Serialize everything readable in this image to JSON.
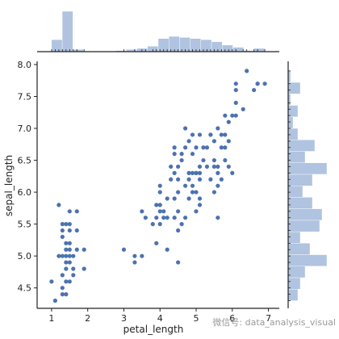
{
  "chart_data": {
    "type": "scatter",
    "xlabel": "petal_length",
    "ylabel": "sepal_length",
    "xlim": [
      0.6,
      7.3
    ],
    "ylim": [
      4.18,
      8.05
    ],
    "xticks": [
      1,
      2,
      3,
      4,
      5,
      6,
      7
    ],
    "yticks": [
      4.5,
      5.0,
      5.5,
      6.0,
      6.5,
      7.0,
      7.5,
      8.0
    ],
    "grid": false,
    "colors": {
      "points": "#4c72b0",
      "hist": "#b0c3e0",
      "axis": "#222222"
    },
    "points": [
      [
        1.1,
        4.3
      ],
      [
        1.0,
        4.6
      ],
      [
        1.4,
        4.4
      ],
      [
        1.3,
        4.4
      ],
      [
        1.3,
        4.5
      ],
      [
        1.4,
        4.6
      ],
      [
        1.5,
        4.6
      ],
      [
        1.6,
        4.7
      ],
      [
        1.3,
        4.7
      ],
      [
        1.4,
        4.8
      ],
      [
        1.6,
        4.8
      ],
      [
        1.9,
        4.8
      ],
      [
        1.4,
        4.9
      ],
      [
        1.5,
        4.9
      ],
      [
        1.2,
        5.0
      ],
      [
        1.3,
        5.0
      ],
      [
        1.4,
        5.0
      ],
      [
        1.5,
        5.0
      ],
      [
        1.6,
        5.0
      ],
      [
        1.5,
        5.1
      ],
      [
        1.4,
        5.1
      ],
      [
        1.7,
        5.1
      ],
      [
        1.9,
        5.1
      ],
      [
        1.5,
        5.2
      ],
      [
        1.4,
        5.2
      ],
      [
        1.3,
        5.3
      ],
      [
        1.3,
        5.4
      ],
      [
        1.5,
        5.4
      ],
      [
        1.7,
        5.4
      ],
      [
        1.3,
        5.5
      ],
      [
        1.4,
        5.5
      ],
      [
        1.5,
        5.5
      ],
      [
        1.5,
        5.7
      ],
      [
        1.7,
        5.7
      ],
      [
        1.2,
        5.8
      ],
      [
        3.0,
        5.1
      ],
      [
        3.3,
        5.0
      ],
      [
        3.3,
        4.9
      ],
      [
        3.5,
        5.0
      ],
      [
        4.5,
        4.9
      ],
      [
        3.5,
        5.7
      ],
      [
        3.6,
        5.6
      ],
      [
        3.8,
        5.5
      ],
      [
        3.9,
        5.2
      ],
      [
        3.9,
        5.6
      ],
      [
        3.9,
        5.8
      ],
      [
        4.0,
        5.5
      ],
      [
        4.0,
        5.7
      ],
      [
        4.0,
        5.8
      ],
      [
        4.0,
        6.0
      ],
      [
        4.0,
        6.1
      ],
      [
        4.1,
        5.6
      ],
      [
        4.1,
        5.7
      ],
      [
        4.2,
        5.6
      ],
      [
        4.2,
        5.9
      ],
      [
        4.3,
        6.2
      ],
      [
        4.4,
        6.3
      ],
      [
        4.4,
        6.6
      ],
      [
        4.4,
        6.7
      ],
      [
        4.5,
        6.0
      ],
      [
        4.5,
        6.2
      ],
      [
        4.5,
        6.4
      ],
      [
        4.5,
        5.4
      ],
      [
        4.6,
        6.5
      ],
      [
        4.6,
        6.6
      ],
      [
        4.7,
        6.1
      ],
      [
        4.7,
        7.0
      ],
      [
        4.7,
        6.7
      ],
      [
        4.8,
        6.8
      ],
      [
        4.8,
        6.3
      ],
      [
        4.9,
        6.0
      ],
      [
        4.9,
        6.3
      ],
      [
        4.9,
        6.9
      ],
      [
        4.2,
        5.1
      ],
      [
        4.4,
        5.6
      ],
      [
        4.5,
        5.7
      ],
      [
        4.7,
        5.6
      ],
      [
        4.6,
        5.5
      ],
      [
        4.8,
        5.9
      ],
      [
        4.3,
        6.4
      ],
      [
        4.4,
        5.9
      ],
      [
        4.9,
        6.1
      ],
      [
        4.9,
        6.6
      ],
      [
        5.0,
        5.7
      ],
      [
        5.0,
        6.0
      ],
      [
        5.0,
        6.7
      ],
      [
        5.1,
        6.9
      ],
      [
        5.1,
        5.8
      ],
      [
        5.1,
        6.3
      ],
      [
        5.1,
        6.4
      ],
      [
        5.2,
        6.5
      ],
      [
        5.3,
        6.4
      ],
      [
        5.4,
        6.9
      ],
      [
        5.4,
        6.2
      ],
      [
        5.5,
        6.8
      ],
      [
        5.5,
        6.5
      ],
      [
        5.6,
        6.3
      ],
      [
        5.6,
        6.1
      ],
      [
        5.6,
        6.4
      ],
      [
        5.7,
        6.7
      ],
      [
        5.8,
        6.7
      ],
      [
        5.8,
        6.5
      ],
      [
        5.9,
        6.8
      ],
      [
        5.9,
        7.1
      ],
      [
        6.0,
        6.3
      ],
      [
        6.0,
        7.2
      ],
      [
        6.1,
        7.2
      ],
      [
        6.1,
        7.7
      ],
      [
        6.3,
        7.3
      ],
      [
        6.4,
        7.9
      ],
      [
        6.6,
        7.6
      ],
      [
        6.7,
        7.7
      ],
      [
        6.9,
        7.7
      ],
      [
        5.6,
        5.6
      ],
      [
        5.7,
        6.9
      ],
      [
        5.2,
        6.7
      ],
      [
        5.0,
        6.3
      ],
      [
        5.8,
        6.9
      ],
      [
        5.5,
        6.4
      ],
      [
        5.1,
        6.2
      ],
      [
        5.1,
        5.9
      ],
      [
        5.0,
        6.3
      ],
      [
        4.8,
        6.2
      ],
      [
        5.3,
        6.7
      ],
      [
        5.4,
        6.9
      ],
      [
        5.5,
        6.0
      ],
      [
        5.7,
        6.2
      ],
      [
        6.1,
        7.4
      ],
      [
        5.8,
        7.2
      ],
      [
        6.7,
        7.7
      ],
      [
        6.1,
        7.6
      ],
      [
        5.6,
        7.0
      ],
      [
        5.9,
        6.4
      ]
    ],
    "top_histogram": {
      "bin_edges": [
        1.0,
        1.295,
        1.59,
        1.885,
        2.18,
        2.475,
        2.77,
        3.065,
        3.36,
        3.655,
        3.95,
        4.245,
        4.54,
        4.835,
        5.13,
        5.425,
        5.72,
        6.015,
        6.31,
        6.605,
        6.9
      ],
      "counts": [
        11,
        37,
        2,
        0,
        0,
        0,
        1,
        2,
        3,
        5,
        12,
        14,
        13,
        12,
        11,
        9,
        6,
        4,
        1,
        3
      ]
    },
    "right_histogram": {
      "bin_edges": [
        4.3,
        4.48,
        4.66,
        4.84,
        5.02,
        5.2,
        5.38,
        5.56,
        5.74,
        5.92,
        6.1,
        6.28,
        6.46,
        6.64,
        6.82,
        7.0,
        7.18,
        7.36,
        7.54,
        7.72,
        7.9
      ],
      "counts": [
        4,
        5,
        7,
        16,
        9,
        5,
        13,
        14,
        10,
        6,
        10,
        16,
        7,
        11,
        4,
        2,
        4,
        1,
        5,
        1
      ]
    }
  },
  "watermark": "微信号: data_analysis_visual"
}
